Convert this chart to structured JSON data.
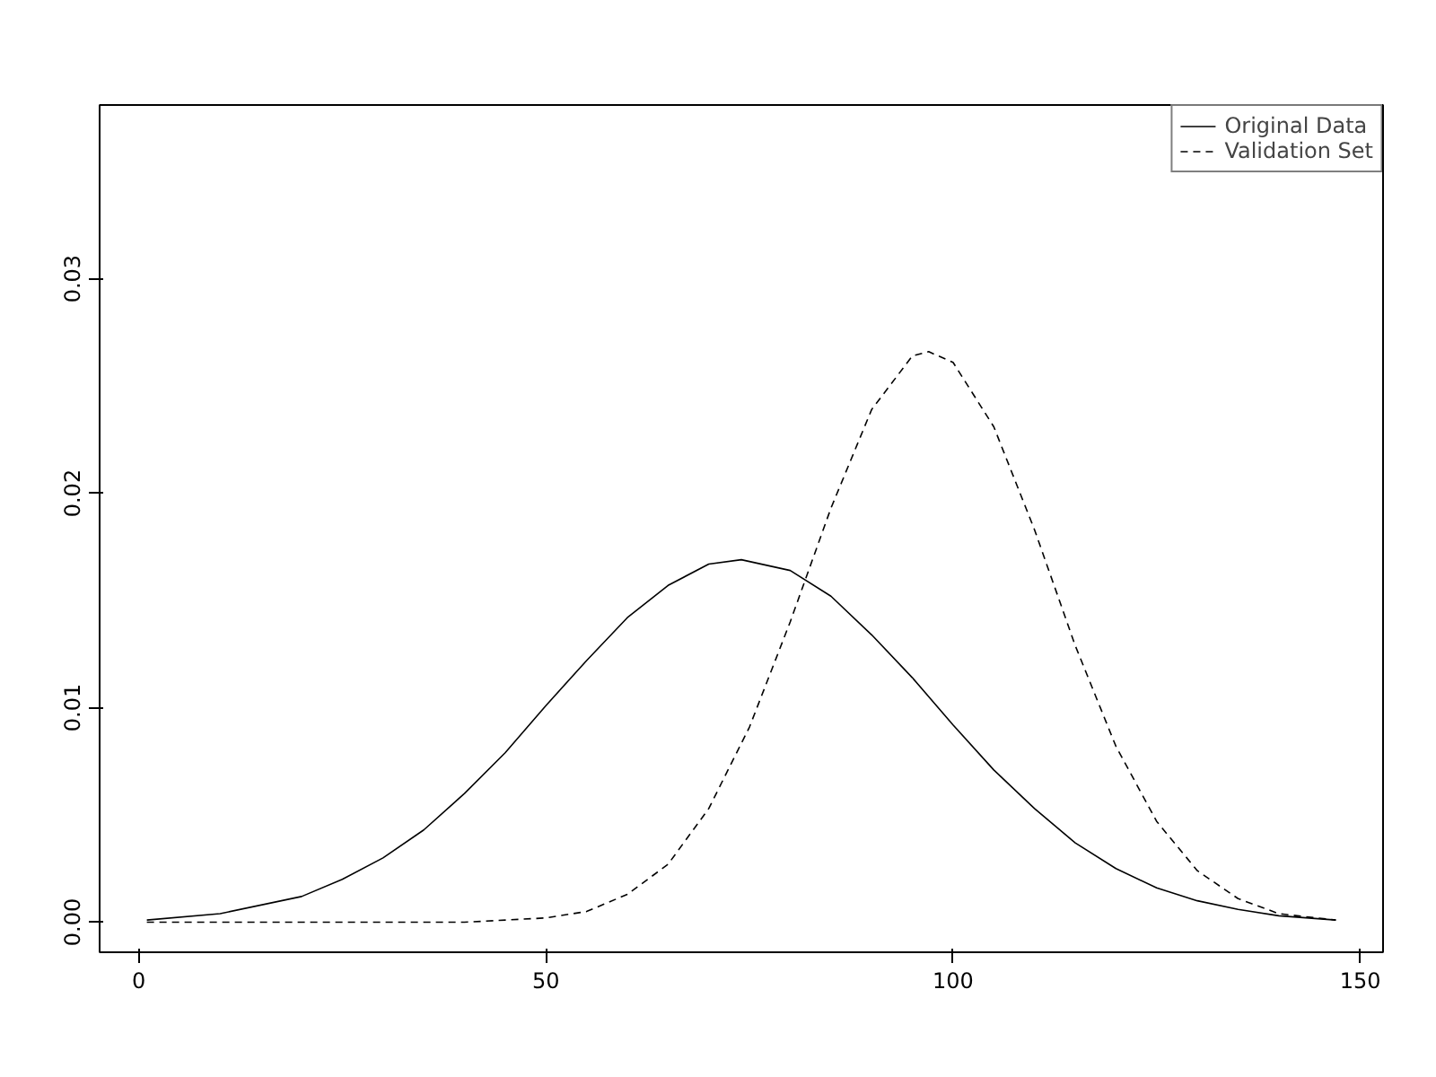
{
  "chart_data": {
    "type": "line",
    "xlim": [
      -4.8,
      152.8
    ],
    "ylim": [
      -0.0014,
      0.0381
    ],
    "xticks": [
      0,
      50,
      100,
      150
    ],
    "yticks": [
      {
        "value": 0,
        "label": "0.00"
      },
      {
        "value": 0.01,
        "label": "0.01"
      },
      {
        "value": 0.02,
        "label": "0.02"
      },
      {
        "value": 0.03,
        "label": "0.03"
      }
    ],
    "grid": false,
    "legend": "top right",
    "marker": "none",
    "series": [
      {
        "name": "Original Data",
        "color": "#000000",
        "line_style": "solid",
        "x": [
          1,
          10,
          20,
          25,
          30,
          35,
          40,
          45,
          50,
          55,
          60,
          65,
          70,
          74,
          80,
          85,
          90,
          95,
          100,
          105,
          110,
          115,
          120,
          125,
          130,
          135,
          140,
          147
        ],
        "values": [
          0.0001,
          0.0004,
          0.0012,
          0.002,
          0.003,
          0.0043,
          0.006,
          0.0079,
          0.0101,
          0.0122,
          0.0142,
          0.0157,
          0.0167,
          0.0169,
          0.0164,
          0.0152,
          0.0134,
          0.0114,
          0.0092,
          0.0071,
          0.0053,
          0.0037,
          0.0025,
          0.0016,
          0.001,
          0.0006,
          0.0003,
          0.0001
        ]
      },
      {
        "name": "Validation Set",
        "color": "#000000",
        "line_style": "dashed",
        "x": [
          1,
          20,
          40,
          50,
          55,
          60,
          65,
          70,
          75,
          80,
          85,
          90,
          95,
          97,
          100,
          105,
          110,
          115,
          120,
          125,
          130,
          135,
          140,
          147
        ],
        "values": [
          0,
          0,
          0,
          0.0002,
          0.0005,
          0.0013,
          0.0027,
          0.0053,
          0.0091,
          0.014,
          0.0193,
          0.0239,
          0.0264,
          0.0266,
          0.0261,
          0.0231,
          0.0183,
          0.0129,
          0.0082,
          0.0047,
          0.0024,
          0.0011,
          0.0004,
          0.0001
        ]
      }
    ]
  }
}
